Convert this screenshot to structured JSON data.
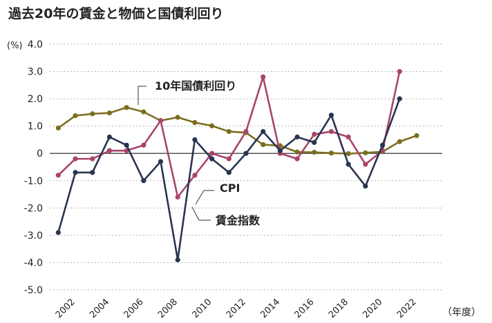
{
  "chart_data": {
    "type": "line",
    "title": "過去20年の賃金と物価と国債利回り",
    "ylabel": "(%)",
    "xlabel": "（年度）",
    "ylim": [
      -5.0,
      4.0
    ],
    "yticks": [
      "4.0",
      "3.0",
      "2.0",
      "1.0",
      "0",
      "-1.0",
      "-2.0",
      "-3.0",
      "-4.0",
      "-5.0"
    ],
    "ytick_values": [
      4,
      3,
      2,
      1,
      0,
      -1,
      -2,
      -3,
      -4,
      -5
    ],
    "xticks": [
      "2002",
      "2004",
      "2006",
      "2008",
      "2010",
      "2012",
      "2014",
      "2016",
      "2018",
      "2020",
      "2022"
    ],
    "x": [
      2001,
      2002,
      2003,
      2004,
      2005,
      2006,
      2007,
      2008,
      2009,
      2010,
      2011,
      2012,
      2013,
      2014,
      2015,
      2016,
      2017,
      2018,
      2019,
      2020,
      2021,
      2022
    ],
    "series": [
      {
        "name": "10年国債利回り",
        "color": "#7b6e1f",
        "values": [
          0.93,
          1.38,
          1.45,
          1.48,
          1.68,
          1.52,
          1.2,
          1.32,
          1.13,
          1.01,
          0.8,
          0.76,
          0.32,
          0.28,
          0.05,
          0.04,
          0.01,
          -0.01,
          0.02,
          0.06,
          0.43,
          0.65
        ]
      },
      {
        "name": "CPI",
        "color": "#a8446a",
        "values": [
          -0.8,
          -0.2,
          -0.2,
          0.1,
          0.1,
          0.3,
          1.2,
          -1.6,
          -0.8,
          0.0,
          -0.2,
          0.8,
          2.8,
          0.0,
          -0.2,
          0.7,
          0.8,
          0.6,
          -0.4,
          0.1,
          3.0,
          null
        ]
      },
      {
        "name": "賃金指数",
        "color": "#283450",
        "values": [
          -2.9,
          -0.7,
          -0.7,
          0.6,
          0.3,
          -1.0,
          -0.3,
          -3.9,
          0.5,
          -0.2,
          -0.7,
          0.0,
          0.8,
          0.1,
          0.6,
          0.4,
          1.4,
          -0.4,
          -1.2,
          0.3,
          2.0,
          null
        ]
      }
    ]
  }
}
